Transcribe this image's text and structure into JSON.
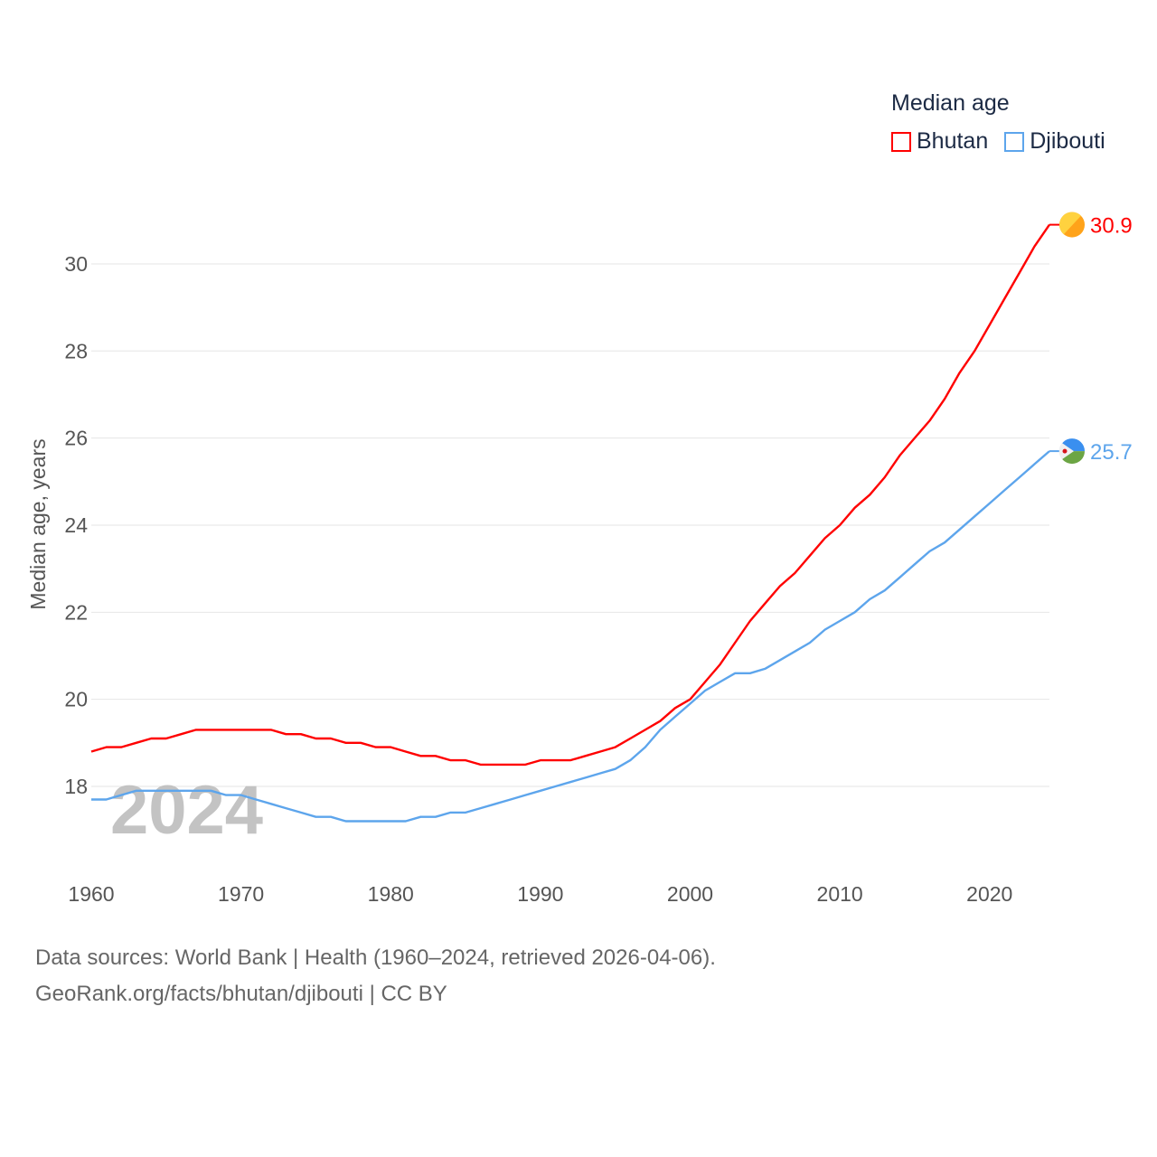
{
  "chart_data": {
    "type": "line",
    "title": "Median age",
    "ylabel": "Median age, years",
    "xlabel": "",
    "ylim": [
      16.5,
      31.5
    ],
    "xlim": [
      1960,
      2024
    ],
    "yticks": [
      18,
      20,
      22,
      24,
      26,
      28,
      30
    ],
    "xticks": [
      1960,
      1970,
      1980,
      1990,
      2000,
      2010,
      2020
    ],
    "grid": true,
    "legend_position": "top-right",
    "year_watermark": "2024",
    "x": [
      1960,
      1961,
      1962,
      1963,
      1964,
      1965,
      1966,
      1967,
      1968,
      1969,
      1970,
      1971,
      1972,
      1973,
      1974,
      1975,
      1976,
      1977,
      1978,
      1979,
      1980,
      1981,
      1982,
      1983,
      1984,
      1985,
      1986,
      1987,
      1988,
      1989,
      1990,
      1991,
      1992,
      1993,
      1994,
      1995,
      1996,
      1997,
      1998,
      1999,
      2000,
      2001,
      2002,
      2003,
      2004,
      2005,
      2006,
      2007,
      2008,
      2009,
      2010,
      2011,
      2012,
      2013,
      2014,
      2015,
      2016,
      2017,
      2018,
      2019,
      2020,
      2021,
      2022,
      2023,
      2024
    ],
    "series": [
      {
        "name": "Bhutan",
        "color": "#ff0000",
        "end_label": "30.9",
        "values": [
          18.8,
          18.9,
          18.9,
          19.0,
          19.1,
          19.1,
          19.2,
          19.3,
          19.3,
          19.3,
          19.3,
          19.3,
          19.3,
          19.2,
          19.2,
          19.1,
          19.1,
          19.0,
          19.0,
          18.9,
          18.9,
          18.8,
          18.7,
          18.7,
          18.6,
          18.6,
          18.5,
          18.5,
          18.5,
          18.5,
          18.6,
          18.6,
          18.6,
          18.7,
          18.8,
          18.9,
          19.1,
          19.3,
          19.5,
          19.8,
          20.0,
          20.4,
          20.8,
          21.3,
          21.8,
          22.2,
          22.6,
          22.9,
          23.3,
          23.7,
          24.0,
          24.4,
          24.7,
          25.1,
          25.6,
          26.0,
          26.4,
          26.9,
          27.5,
          28.0,
          28.6,
          29.2,
          29.8,
          30.4,
          30.9
        ]
      },
      {
        "name": "Djibouti",
        "color": "#5da5ec",
        "end_label": "25.7",
        "values": [
          17.7,
          17.7,
          17.8,
          17.9,
          17.9,
          17.9,
          17.9,
          17.9,
          17.9,
          17.8,
          17.8,
          17.7,
          17.6,
          17.5,
          17.4,
          17.3,
          17.3,
          17.2,
          17.2,
          17.2,
          17.2,
          17.2,
          17.3,
          17.3,
          17.4,
          17.4,
          17.5,
          17.6,
          17.7,
          17.8,
          17.9,
          18.0,
          18.1,
          18.2,
          18.3,
          18.4,
          18.6,
          18.9,
          19.3,
          19.6,
          19.9,
          20.2,
          20.4,
          20.6,
          20.6,
          20.7,
          20.9,
          21.1,
          21.3,
          21.6,
          21.8,
          22.0,
          22.3,
          22.5,
          22.8,
          23.1,
          23.4,
          23.6,
          23.9,
          24.2,
          24.5,
          24.8,
          25.1,
          25.4,
          25.7
        ]
      }
    ]
  },
  "footer": {
    "source": "Data sources: World Bank | Health (1960–2024, retrieved 2026-04-06).",
    "credit": "GeoRank.org/facts/bhutan/djibouti | CC BY"
  }
}
